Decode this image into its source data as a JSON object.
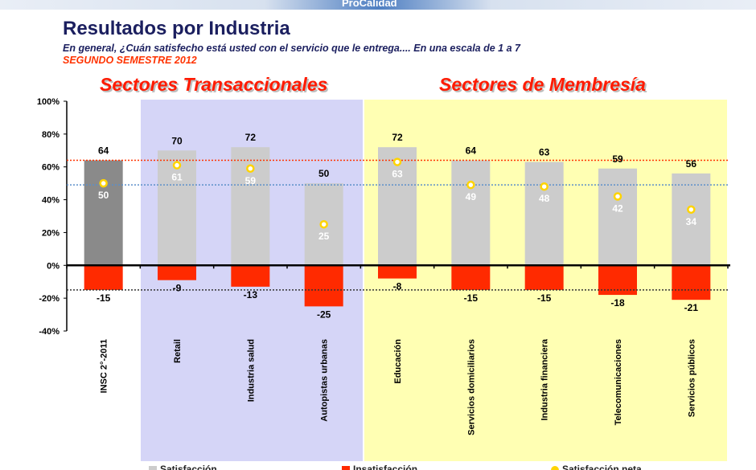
{
  "header": {
    "brand": "ProCalidad",
    "title": "Resultados por Industria",
    "subtitle": "En general, ¿Cuán satisfecho está usted con el servicio que le entrega....  En una escala de 1 a 7",
    "semester": "SEGUNDO SEMESTRE 2012"
  },
  "groups": {
    "transactional": "Sectores Transaccionales",
    "membership": "Sectores de Membresía"
  },
  "colors": {
    "transactional_bg": "#d5d5f7",
    "membership_bg": "#ffffb3",
    "satisfaction_bar": "#cccccc",
    "benchmark_bar": "#8a8a8a",
    "insatisfaction_bar": "#ff2a00",
    "net_marker": "#ffd400",
    "ref_line_top": "#ff3300",
    "ref_line_mid": "#5b8fc9",
    "ref_line_bottom": "#333333"
  },
  "legend": {
    "satisfaction": "Satisfacción",
    "insatisfaction": "Insatisfacción",
    "net": "Satisfacción neta"
  },
  "chart_data": {
    "type": "bar",
    "categories": [
      "INSC 2°-2011",
      "Retail",
      "Industria salud",
      "Autopistas urbanas",
      "Educación",
      "Servicios domiciliarios",
      "Industria financiera",
      "Telecomunicaciones",
      "Servicios públicos"
    ],
    "series": [
      {
        "name": "Satisfacción",
        "values": [
          64,
          70,
          72,
          50,
          72,
          64,
          63,
          59,
          56
        ]
      },
      {
        "name": "Insatisfacción",
        "values": [
          -15,
          -9,
          -13,
          -25,
          -8,
          -15,
          -15,
          -18,
          -21
        ]
      },
      {
        "name": "Satisfacción neta",
        "values": [
          50,
          61,
          59,
          25,
          63,
          49,
          48,
          42,
          34
        ]
      }
    ],
    "ylim": [
      -40,
      100
    ],
    "yticks": [
      -40,
      -20,
      0,
      20,
      40,
      60,
      80,
      100
    ],
    "ytick_labels": [
      "-40%",
      "-20%",
      "0%",
      "20%",
      "40%",
      "60%",
      "80%",
      "100%"
    ],
    "reference_lines": [
      64,
      49,
      -15
    ],
    "legend_position": "bottom"
  }
}
